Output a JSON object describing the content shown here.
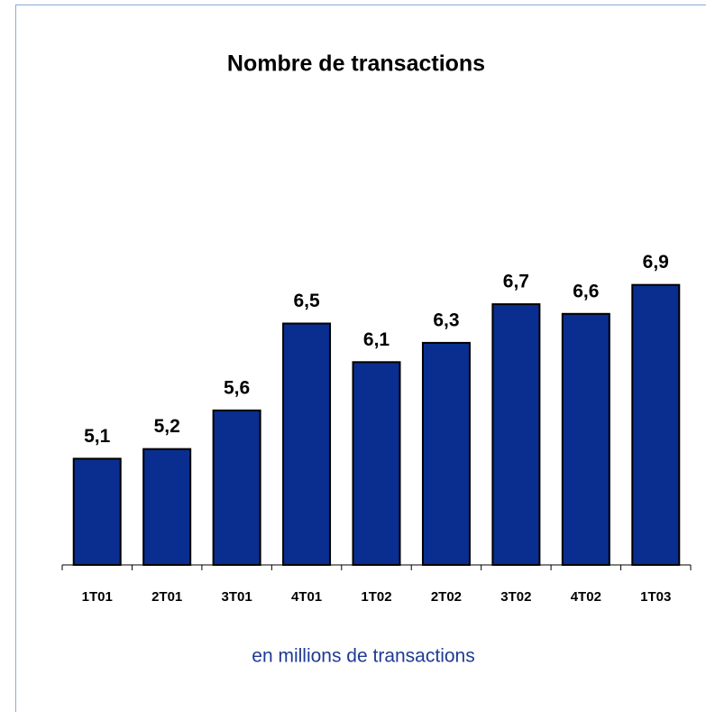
{
  "chart_data": {
    "type": "bar",
    "title": "Nombre de transactions",
    "subtitle": "en millions de transactions",
    "categories": [
      "1T01",
      "2T01",
      "3T01",
      "4T01",
      "1T02",
      "2T02",
      "3T02",
      "4T02",
      "1T03"
    ],
    "values": [
      5.1,
      5.2,
      5.6,
      6.5,
      6.1,
      6.3,
      6.7,
      6.6,
      6.9
    ],
    "value_labels": [
      "5,1",
      "5,2",
      "5,6",
      "6,5",
      "6,1",
      "6,3",
      "6,7",
      "6,6",
      "6,9"
    ],
    "color": "#0a2e8f",
    "ylim": [
      4,
      8
    ]
  }
}
